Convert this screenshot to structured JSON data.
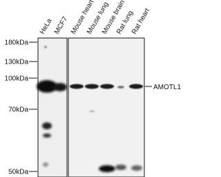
{
  "lanes": [
    "HeLa",
    "MCF7",
    "Mouse heart",
    "Mouse lung",
    "Mouse brain",
    "Rat lung",
    "Rat heart"
  ],
  "markers": [
    "180kDa",
    "130kDa",
    "100kDa",
    "70kDa",
    "50kDa"
  ],
  "target": "AMOTL1"
}
